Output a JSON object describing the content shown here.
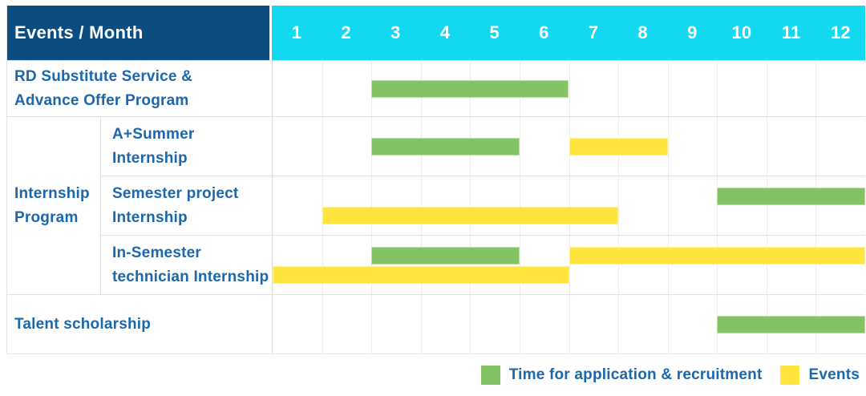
{
  "header": {
    "corner_label": "Events / Month",
    "months": [
      "1",
      "2",
      "3",
      "4",
      "5",
      "6",
      "7",
      "8",
      "9",
      "10",
      "11",
      "12"
    ]
  },
  "colors": {
    "navy": "#0b4d80",
    "cyan": "#12d9ef",
    "green": "#84c363",
    "yellow": "#ffe53d",
    "label_blue": "#1a67ac"
  },
  "group": {
    "label_lines": [
      "Internship",
      "Program"
    ]
  },
  "rows": [
    {
      "id": "rd-substitute",
      "label_lines": [
        "RD Substitute Service &",
        "Advance Offer Program"
      ],
      "bars": [
        {
          "color": "green",
          "lane": "single",
          "start_month": 3,
          "end_month": 6
        }
      ]
    },
    {
      "id": "a-plus-summer",
      "label_lines": [
        "A+Summer",
        "Internship"
      ],
      "bars": [
        {
          "color": "green",
          "lane": "single",
          "start_month": 3,
          "end_month": 5
        },
        {
          "color": "yellow",
          "lane": "single",
          "start_month": 7,
          "end_month": 8
        }
      ]
    },
    {
      "id": "semester-project",
      "label_lines": [
        "Semester project",
        "Internship"
      ],
      "bars": [
        {
          "color": "green",
          "lane": "top",
          "start_month": 10,
          "end_month": 12
        },
        {
          "color": "yellow",
          "lane": "bottom",
          "start_month": 2,
          "end_month": 7
        }
      ]
    },
    {
      "id": "in-semester-technician",
      "label_lines": [
        "In-Semester",
        "technician Internship"
      ],
      "bars": [
        {
          "color": "green",
          "lane": "top",
          "start_month": 3,
          "end_month": 5
        },
        {
          "color": "yellow",
          "lane": "top",
          "start_month": 7,
          "end_month": 12
        },
        {
          "color": "yellow",
          "lane": "bottom",
          "start_month": 1,
          "end_month": 6
        }
      ]
    },
    {
      "id": "talent-scholarship",
      "label_lines": [
        "Talent scholarship"
      ],
      "bars": [
        {
          "color": "green",
          "lane": "single",
          "start_month": 10,
          "end_month": 12
        }
      ]
    }
  ],
  "legend": {
    "items": [
      {
        "color": "green",
        "label": "Time for application & recruitment"
      },
      {
        "color": "yellow",
        "label": "Events"
      }
    ]
  },
  "chart_data": {
    "type": "bar",
    "subtype": "gantt-schedule",
    "title": "Events / Month",
    "x_axis": {
      "label": "Month",
      "ticks": [
        1,
        2,
        3,
        4,
        5,
        6,
        7,
        8,
        9,
        10,
        11,
        12
      ],
      "range": [
        1,
        12
      ],
      "grid": true
    },
    "legend_position": "bottom-right",
    "series_legend": [
      "Time for application & recruitment",
      "Events"
    ],
    "tasks": [
      {
        "row": "RD Substitute Service & Advance Offer Program",
        "bars": [
          {
            "series": "Time for application & recruitment",
            "start_month": 3,
            "end_month": 6
          }
        ]
      },
      {
        "row": "Internship Program / A+Summer Internship",
        "bars": [
          {
            "series": "Time for application & recruitment",
            "start_month": 3,
            "end_month": 5
          },
          {
            "series": "Events",
            "start_month": 7,
            "end_month": 8
          }
        ]
      },
      {
        "row": "Internship Program / Semester project Internship",
        "bars": [
          {
            "series": "Time for application & recruitment",
            "start_month": 10,
            "end_month": 12
          },
          {
            "series": "Events",
            "start_month": 2,
            "end_month": 7
          }
        ]
      },
      {
        "row": "Internship Program / In-Semester technician Internship",
        "bars": [
          {
            "series": "Time for application & recruitment",
            "start_month": 3,
            "end_month": 5
          },
          {
            "series": "Events",
            "start_month": 7,
            "end_month": 12
          },
          {
            "series": "Events",
            "start_month": 1,
            "end_month": 6
          }
        ]
      },
      {
        "row": "Talent scholarship",
        "bars": [
          {
            "series": "Time for application & recruitment",
            "start_month": 10,
            "end_month": 12
          }
        ]
      }
    ]
  }
}
